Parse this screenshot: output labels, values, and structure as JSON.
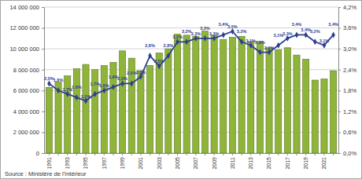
{
  "chart_data": {
    "type": "bar",
    "source": "Source : Ministère de l'Intérieur",
    "categories": [
      "1991",
      null,
      "1993",
      null,
      "1995",
      null,
      "1997",
      null,
      "1999",
      null,
      "2001",
      null,
      "2003",
      null,
      "2005",
      null,
      "2007",
      null,
      "2009",
      null,
      "2011",
      null,
      "2013",
      null,
      "2015",
      null,
      "2017",
      null,
      "2019",
      null,
      "2021",
      null
    ],
    "series": [
      {
        "type": "bar",
        "color": "#8fb43a",
        "values": [
          6300000,
          6800000,
          7400000,
          8100000,
          8500000,
          8000000,
          8400000,
          8700000,
          9800000,
          9100000,
          7900000,
          8400000,
          9600000,
          10000000,
          11400000,
          11300000,
          11200000,
          11700000,
          11300000,
          10900000,
          11100000,
          11200000,
          10700000,
          10700000,
          10100000,
          9900000,
          10100000,
          9400000,
          9000000,
          7000000,
          7100000,
          7900000
        ]
      },
      {
        "type": "line",
        "axis": "y2",
        "color": "#2f3f8f",
        "marker": "diamond",
        "data_labels": true,
        "values": [
          2.0,
          1.8,
          1.7,
          1.6,
          1.5,
          1.7,
          1.8,
          1.9,
          2.0,
          2.0,
          2.2,
          2.8,
          2.5,
          2.8,
          3.2,
          3.2,
          3.3,
          3.3,
          3.3,
          3.4,
          3.5,
          3.2,
          3.1,
          2.9,
          2.9,
          3.1,
          3.3,
          3.4,
          3.4,
          3.2,
          3.1,
          3.4
        ],
        "value_labels": [
          "2,0%",
          "1,8%",
          "1,7%",
          "1,6%",
          "1,5%",
          "1,7%",
          "1,8%",
          "1,9%",
          "2,0%",
          "2,0%",
          "2,2%",
          "2,8%",
          "2,5%",
          "2,8%",
          "3,2%",
          "3,2%",
          "3,3%",
          "3,3%",
          "3,3%",
          "3,4%",
          "3,5%",
          "3,2%",
          "3,1%",
          "2,9%",
          "2,9%",
          "3,1%",
          "3,3%",
          "3,4%",
          "3,4%",
          "3,2%",
          "3,1%",
          "3,4%"
        ]
      }
    ],
    "ylim": [
      0,
      14000000
    ],
    "yticks": [
      0,
      {
        "value": 2000000,
        "label": "2 000 000"
      },
      {
        "value": 4000000,
        "label": "4 000 000"
      },
      {
        "value": 6000000,
        "label": "6 000 000"
      },
      {
        "value": 8000000,
        "label": "8 000 000"
      },
      {
        "value": 10000000,
        "label": "10 000 000"
      },
      {
        "value": 12000000,
        "label": "12 000 000"
      },
      {
        "value": 14000000,
        "label": "14 000 000"
      }
    ],
    "y2lim": [
      0,
      4.2
    ],
    "y2ticks": [
      {
        "value": 0,
        "label": "0,0%"
      },
      {
        "value": 0.6,
        "label": "0,6%"
      },
      {
        "value": 1.2,
        "label": "1,2%"
      },
      {
        "value": 1.8,
        "label": "1,8%"
      },
      {
        "value": 2.4,
        "label": "2,4%"
      },
      {
        "value": 3.0,
        "label": "3,0%"
      },
      {
        "value": 3.6,
        "label": "3,6%"
      },
      {
        "value": 4.2,
        "label": "4,2%"
      }
    ],
    "grid": true
  }
}
